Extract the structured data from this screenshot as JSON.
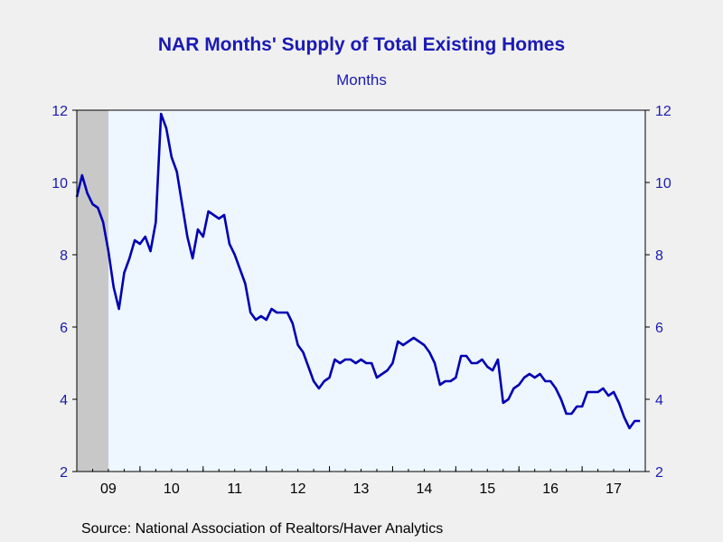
{
  "chart_data": {
    "type": "line",
    "title": "NAR Months' Supply of Total Existing Homes",
    "subtitle": "Months",
    "source": "Source:  National Association of Realtors/Haver Analytics",
    "ylim": [
      2,
      12
    ],
    "yticks": [
      2,
      4,
      6,
      8,
      10,
      12
    ],
    "y_axis": "both left and right",
    "x_start": "2009-01",
    "x_end": "2018-01",
    "xticks": [
      {
        "label": "09",
        "at": 2009.5
      },
      {
        "label": "10",
        "at": 2010.5
      },
      {
        "label": "11",
        "at": 2011.5
      },
      {
        "label": "12",
        "at": 2012.5
      },
      {
        "label": "13",
        "at": 2013.5
      },
      {
        "label": "14",
        "at": 2014.5
      },
      {
        "label": "15",
        "at": 2015.5
      },
      {
        "label": "16",
        "at": 2016.5
      },
      {
        "label": "17",
        "at": 2017.5
      }
    ],
    "recession_shading": {
      "start": "2009-01",
      "end": "2009-06",
      "color": "#c8c8c8"
    },
    "plot_background": "#eef6ff",
    "line_color": "#0000b4",
    "grid": false,
    "series": [
      {
        "start": "2009-01",
        "frequency": "monthly",
        "values": [
          9.6,
          10.2,
          9.7,
          9.4,
          9.3,
          8.9,
          8.1,
          7.1,
          6.5,
          7.5,
          7.9,
          8.4,
          8.3,
          8.5,
          8.1,
          8.9,
          11.9,
          11.5,
          10.7,
          10.3,
          9.4,
          8.5,
          7.9,
          8.7,
          8.5,
          9.2,
          9.1,
          9.0,
          9.1,
          8.3,
          8.0,
          7.6,
          7.2,
          6.4,
          6.2,
          6.3,
          6.2,
          6.5,
          6.4,
          6.4,
          6.4,
          6.1,
          5.5,
          5.3,
          4.9,
          4.5,
          4.3,
          4.5,
          4.6,
          5.1,
          5.0,
          5.1,
          5.1,
          5.0,
          5.1,
          5.0,
          5.0,
          4.6,
          4.7,
          4.8,
          5.0,
          5.6,
          5.5,
          5.6,
          5.7,
          5.6,
          5.5,
          5.3,
          5.0,
          4.4,
          4.5,
          4.5,
          4.6,
          5.2,
          5.2,
          5.0,
          5.0,
          5.1,
          4.9,
          4.8,
          5.1,
          3.9,
          4.0,
          4.3,
          4.4,
          4.6,
          4.7,
          4.6,
          4.7,
          4.5,
          4.5,
          4.3,
          4.0,
          3.6,
          3.6,
          3.8,
          3.8,
          4.2,
          4.2,
          4.2,
          4.3,
          4.1,
          4.2,
          3.9,
          3.5,
          3.2,
          3.4,
          3.4
        ]
      }
    ]
  }
}
